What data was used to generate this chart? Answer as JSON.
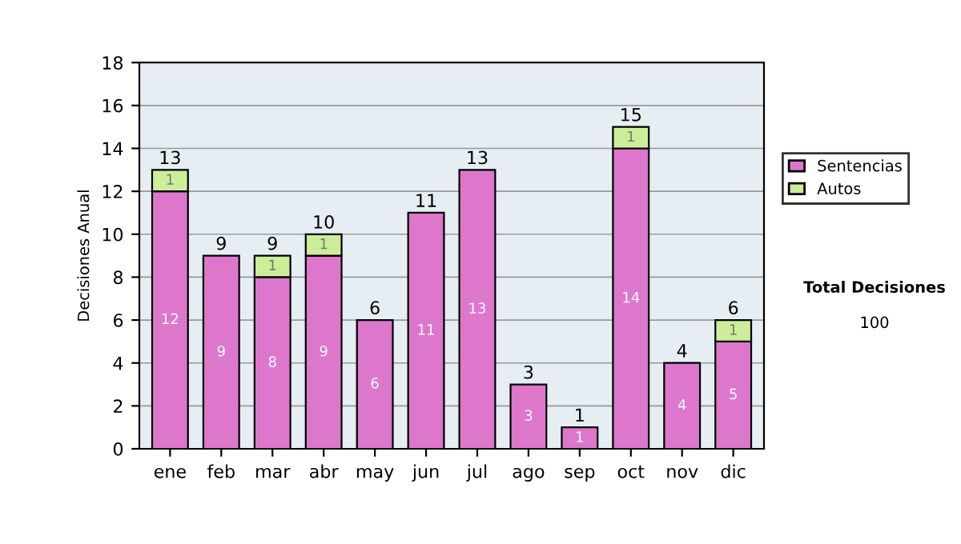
{
  "chart_data": {
    "type": "bar",
    "stacked": true,
    "ylabel": "Decisiones Anual",
    "categories": [
      "ene",
      "feb",
      "mar",
      "abr",
      "may",
      "jun",
      "jul",
      "ago",
      "sep",
      "oct",
      "nov",
      "dic"
    ],
    "series": [
      {
        "name": "Sentencias",
        "color": "#dd77cc",
        "values": [
          12,
          9,
          8,
          9,
          6,
          11,
          13,
          3,
          1,
          14,
          4,
          5
        ],
        "value_labels": [
          "12",
          "9",
          "8",
          "9",
          "6",
          "11",
          "13",
          "3",
          "1",
          "14",
          "4",
          "5"
        ]
      },
      {
        "name": "Autos",
        "color": "#ccee99",
        "values": [
          1,
          0,
          1,
          1,
          0,
          0,
          0,
          0,
          0,
          1,
          0,
          1
        ],
        "value_labels": [
          "1",
          null,
          "1",
          "1",
          null,
          null,
          null,
          null,
          null,
          "1",
          null,
          "1"
        ]
      }
    ],
    "totals": [
      "13",
      "9",
      "9",
      "10",
      "6",
      "11",
      "13",
      "3",
      "1",
      "15",
      "4",
      "6"
    ],
    "ylim": [
      0,
      18
    ],
    "yticks": [
      0,
      2,
      4,
      6,
      8,
      10,
      12,
      14,
      16,
      18
    ],
    "grid": "y",
    "legend": "right",
    "annotations": [
      "Total Decisiones",
      "100"
    ]
  }
}
